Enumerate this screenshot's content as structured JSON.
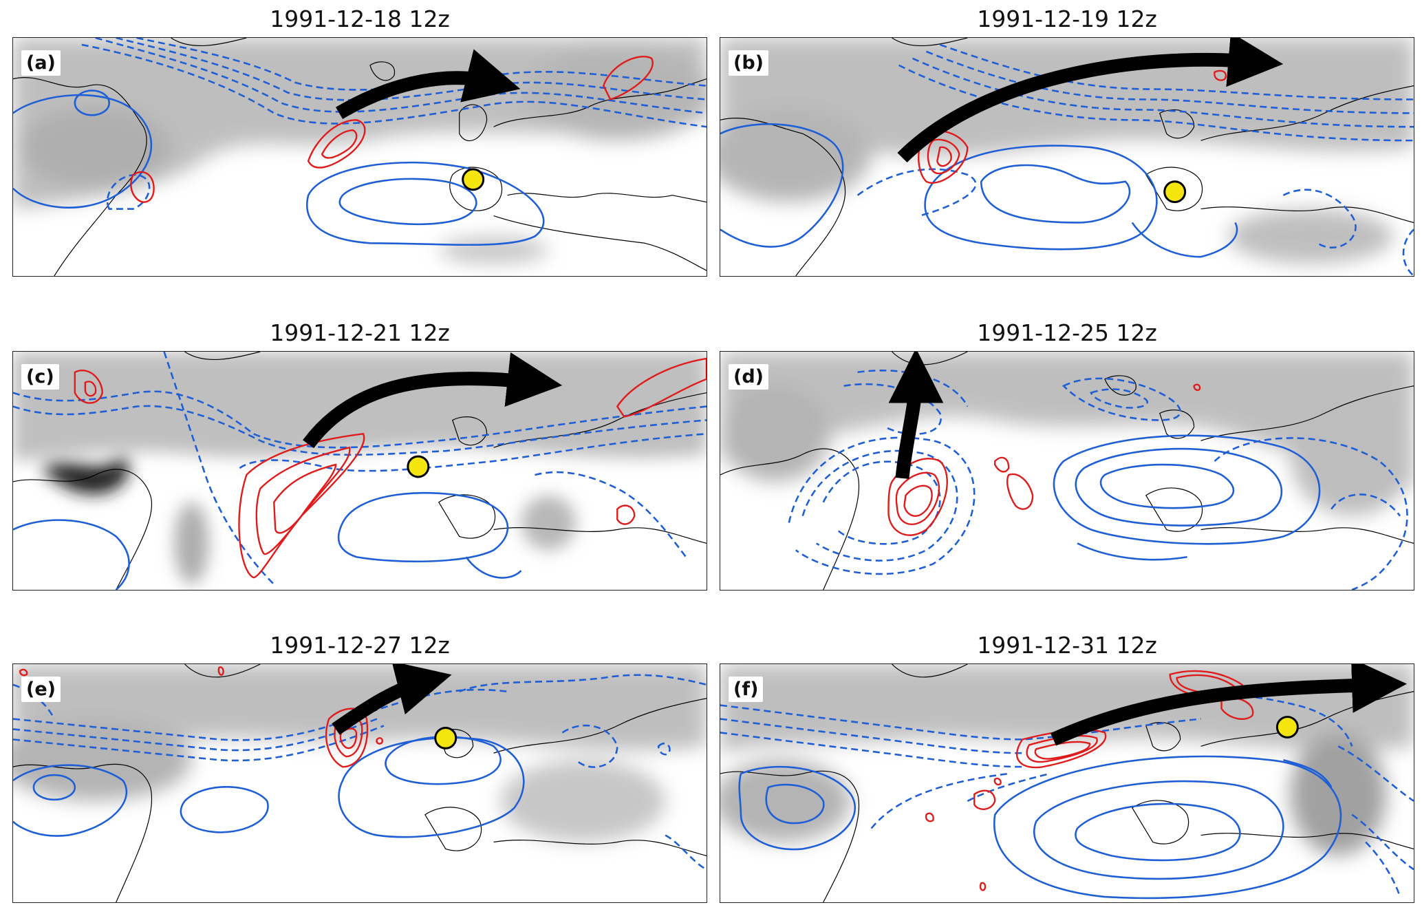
{
  "figure": {
    "panels": [
      {
        "label": "(a)",
        "title": "1991-12-18 12z"
      },
      {
        "label": "(b)",
        "title": "1991-12-19 12z"
      },
      {
        "label": "(c)",
        "title": "1991-12-21 12z"
      },
      {
        "label": "(d)",
        "title": "1991-12-25 12z"
      },
      {
        "label": "(e)",
        "title": "1991-12-27 12z"
      },
      {
        "label": "(f)",
        "title": "1991-12-31 12z"
      }
    ],
    "colors": {
      "positive_contour": "#1f5fd6",
      "negative_contour": "#1f5fd6",
      "jet_contour": "#e01b1b",
      "arrow": "#000000",
      "marker": "#f5e50f",
      "coastline": "#000000",
      "shading": "#8a8a8a"
    }
  }
}
